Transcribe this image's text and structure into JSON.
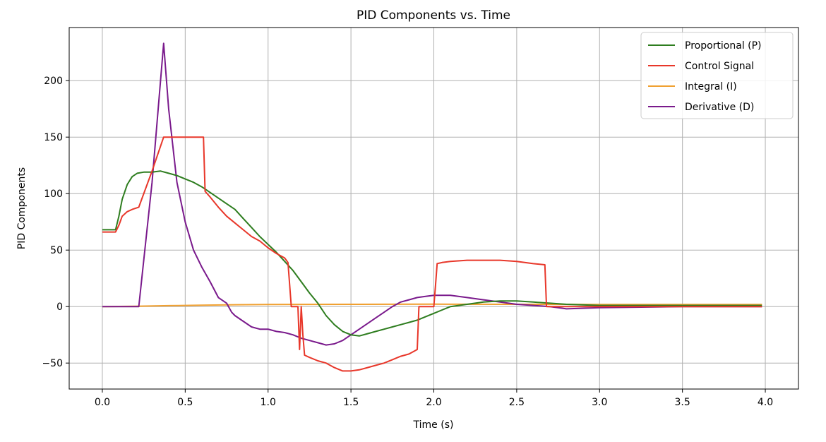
{
  "chart_data": {
    "type": "line",
    "title": "PID Components vs. Time",
    "xlabel": "Time (s)",
    "ylabel": "PID Components",
    "xlim": [
      -0.2,
      4.2
    ],
    "ylim": [
      -73,
      247
    ],
    "xticks": [
      0.0,
      0.5,
      1.0,
      1.5,
      2.0,
      2.5,
      3.0,
      3.5,
      4.0
    ],
    "xtick_labels": [
      "0.0",
      "0.5",
      "1.0",
      "1.5",
      "2.0",
      "2.5",
      "3.0",
      "3.5",
      "4.0"
    ],
    "yticks": [
      -50,
      0,
      50,
      100,
      150,
      200
    ],
    "ytick_labels": [
      "−50",
      "0",
      "50",
      "100",
      "150",
      "200"
    ],
    "grid": true,
    "legend_position": "top-right",
    "series": [
      {
        "name": "Proportional (P)",
        "color": "#2e7d1f",
        "x": [
          0,
          0.08,
          0.1,
          0.12,
          0.15,
          0.18,
          0.21,
          0.25,
          0.3,
          0.35,
          0.4,
          0.45,
          0.5,
          0.55,
          0.6,
          0.65,
          0.7,
          0.75,
          0.8,
          0.85,
          0.9,
          0.95,
          1.0,
          1.05,
          1.1,
          1.15,
          1.2,
          1.25,
          1.3,
          1.35,
          1.4,
          1.45,
          1.5,
          1.55,
          1.6,
          1.65,
          1.7,
          1.75,
          1.8,
          1.85,
          1.9,
          1.95,
          2.0,
          2.05,
          2.1,
          2.15,
          2.2,
          2.3,
          2.4,
          2.5,
          2.6,
          2.7,
          2.8,
          3.0,
          3.5,
          3.98
        ],
        "values": [
          68,
          68,
          80,
          95,
          108,
          115,
          118,
          119,
          119,
          120,
          118,
          116,
          113,
          110,
          106,
          101,
          96,
          91,
          86,
          78,
          70,
          62,
          55,
          48,
          40,
          32,
          22,
          12,
          3,
          -8,
          -16,
          -22,
          -25,
          -26,
          -24,
          -22,
          -20,
          -18,
          -16,
          -14,
          -12,
          -9,
          -6,
          -3,
          0,
          1,
          2,
          4,
          5,
          5,
          4,
          3,
          2,
          1,
          1,
          1
        ]
      },
      {
        "name": "Control Signal",
        "color": "#e8372a",
        "x": [
          0,
          0.08,
          0.1,
          0.12,
          0.15,
          0.18,
          0.22,
          0.3,
          0.37,
          0.4,
          0.45,
          0.5,
          0.55,
          0.61,
          0.62,
          0.65,
          0.7,
          0.75,
          0.8,
          0.85,
          0.9,
          0.95,
          1.0,
          1.05,
          1.1,
          1.12,
          1.13,
          1.14,
          1.18,
          1.19,
          1.2,
          1.21,
          1.22,
          1.25,
          1.3,
          1.35,
          1.4,
          1.45,
          1.5,
          1.55,
          1.6,
          1.65,
          1.7,
          1.75,
          1.8,
          1.85,
          1.9,
          1.91,
          1.92,
          1.95,
          2.0,
          2.01,
          2.02,
          2.05,
          2.1,
          2.2,
          2.3,
          2.4,
          2.5,
          2.6,
          2.67,
          2.68,
          2.7,
          2.8,
          3.0,
          3.5,
          3.98
        ],
        "values": [
          66,
          66,
          72,
          80,
          84,
          86,
          88,
          120,
          150,
          150,
          150,
          150,
          150,
          150,
          102,
          97,
          88,
          80,
          74,
          68,
          62,
          58,
          52,
          47,
          43,
          39,
          20,
          0,
          0,
          -38,
          0,
          -25,
          -43,
          -45,
          -48,
          -50,
          -54,
          -57,
          -57,
          -56,
          -54,
          -52,
          -50,
          -47,
          -44,
          -42,
          -38,
          0,
          0,
          0,
          0,
          18,
          38,
          39,
          40,
          41,
          41,
          41,
          40,
          38,
          37,
          0,
          0,
          0,
          0,
          0,
          0
        ]
      },
      {
        "name": "Integral (I)",
        "color": "#f0a030",
        "x": [
          0,
          0.2,
          0.4,
          0.6,
          0.8,
          1.0,
          1.5,
          2.0,
          2.5,
          3.0,
          3.5,
          3.98
        ],
        "values": [
          0,
          0.3,
          0.8,
          1.2,
          1.6,
          1.8,
          2.0,
          2.1,
          2.0,
          1.9,
          1.9,
          1.9
        ]
      },
      {
        "name": "Derivative (D)",
        "color": "#7a1a8c",
        "x": [
          0,
          0.22,
          0.3,
          0.37,
          0.4,
          0.45,
          0.5,
          0.55,
          0.6,
          0.65,
          0.7,
          0.75,
          0.78,
          0.8,
          0.85,
          0.9,
          0.95,
          1.0,
          1.05,
          1.1,
          1.15,
          1.2,
          1.25,
          1.3,
          1.35,
          1.4,
          1.45,
          1.5,
          1.55,
          1.6,
          1.65,
          1.7,
          1.75,
          1.8,
          1.85,
          1.9,
          1.95,
          2.0,
          2.05,
          2.1,
          2.2,
          2.3,
          2.4,
          2.5,
          2.6,
          2.7,
          2.75,
          2.8,
          3.0,
          3.5,
          3.98
        ],
        "values": [
          0,
          0,
          110,
          233,
          175,
          110,
          75,
          50,
          35,
          22,
          8,
          3,
          -5,
          -8,
          -13,
          -18,
          -20,
          -20,
          -22,
          -23,
          -25,
          -28,
          -30,
          -32,
          -34,
          -33,
          -30,
          -25,
          -20,
          -15,
          -10,
          -5,
          0,
          4,
          6,
          8,
          9,
          10,
          10,
          10,
          8,
          6,
          4,
          2,
          1,
          0,
          -1,
          -2,
          -1,
          0,
          0
        ]
      }
    ]
  }
}
